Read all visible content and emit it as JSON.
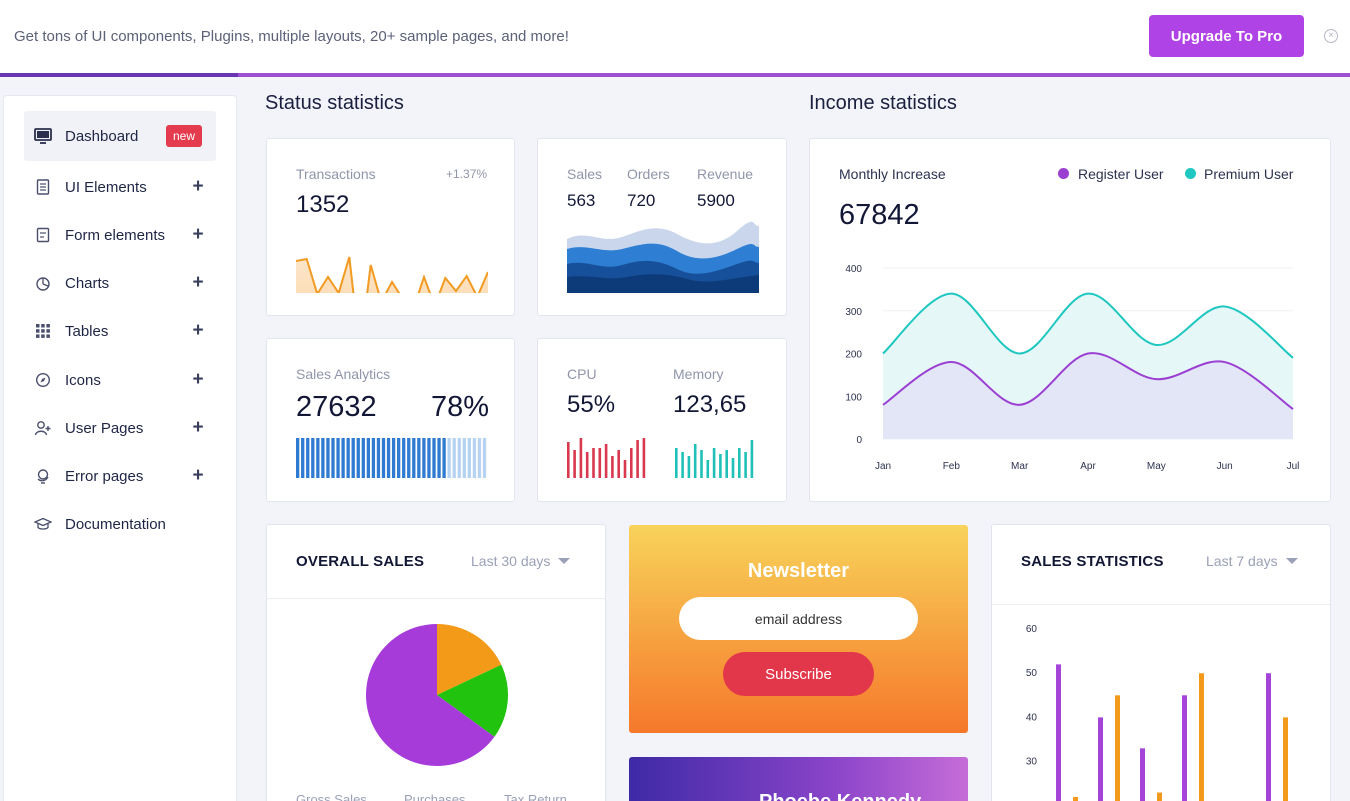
{
  "banner": {
    "text": "Get tons of UI components, Plugins, multiple layouts, 20+ sample pages, and more!",
    "upgrade_label": "Upgrade To Pro",
    "close_icon": "close-icon",
    "progress": 0.176
  },
  "sidebar": {
    "items": [
      {
        "label": "Dashboard",
        "icon": "monitor-icon",
        "badge": "new"
      },
      {
        "label": "UI Elements",
        "icon": "document-icon"
      },
      {
        "label": "Form elements",
        "icon": "form-icon"
      },
      {
        "label": "Charts",
        "icon": "pie-chart-icon"
      },
      {
        "label": "Tables",
        "icon": "grid-icon"
      },
      {
        "label": "Icons",
        "icon": "compass-icon"
      },
      {
        "label": "User Pages",
        "icon": "user-plus-icon"
      },
      {
        "label": "Error pages",
        "icon": "globe-icon"
      },
      {
        "label": "Documentation",
        "icon": "graduation-cap-icon"
      }
    ]
  },
  "status": {
    "title": "Status statistics",
    "transactions": {
      "label": "Transactions",
      "change": "+1.37%",
      "value": "1352",
      "sparkline": [
        260,
        258,
        293,
        276,
        292,
        256,
        350,
        264,
        301,
        281,
        298,
        308,
        276,
        305,
        277,
        290,
        275,
        296,
        271
      ]
    },
    "sales_orders": {
      "sales_label": "Sales",
      "sales_value": "563",
      "orders_label": "Orders",
      "orders_value": "720",
      "revenue_label": "Revenue",
      "revenue_value": "5900"
    },
    "sales_analytics": {
      "label": "Sales Analytics",
      "value": "27632",
      "percent": "78%",
      "fill_fraction": 0.78
    },
    "cpu_memory": {
      "cpu_label": "CPU",
      "cpu_value": "55%",
      "memory_label": "Memory",
      "memory_value": "123,65"
    }
  },
  "income": {
    "title": "Income statistics",
    "label": "Monthly Increase",
    "value": "67842",
    "legend": [
      {
        "name": "Register User",
        "color": "#9b3fd3"
      },
      {
        "name": "Premium User",
        "color": "#1ec7c0"
      }
    ]
  },
  "chart_data": [
    {
      "type": "area",
      "x": [
        "Jan",
        "Feb",
        "Mar",
        "Apr",
        "May",
        "Jun",
        "Jul"
      ],
      "series": [
        {
          "name": "Register User",
          "values": [
            80,
            180,
            80,
            200,
            140,
            180,
            70
          ]
        },
        {
          "name": "Premium User",
          "values": [
            200,
            340,
            200,
            340,
            220,
            310,
            190
          ]
        }
      ],
      "yticks": [
        0,
        100,
        200,
        300,
        400
      ],
      "ylim": [
        0,
        400
      ],
      "grid": true,
      "legend": "top-right"
    },
    {
      "type": "pie",
      "slices": [
        {
          "value": 18,
          "color": "#f39b19"
        },
        {
          "value": 17,
          "color": "#22c30e"
        },
        {
          "value": 65,
          "color": "#a63bd9"
        }
      ],
      "legend_labels": [
        "Gross Sales",
        "Purchases",
        "Tax Return"
      ]
    },
    {
      "type": "bar",
      "series": [
        {
          "values": [
            52,
            40,
            33,
            45,
            50
          ],
          "color": "#a444d8"
        },
        {
          "values": [
            22,
            45,
            23,
            50,
            40
          ],
          "color": "#f39a1c"
        }
      ],
      "yticks": [
        30,
        40,
        50,
        60
      ],
      "ylim": [
        20,
        60
      ]
    }
  ],
  "overall_sales": {
    "title": "OVERALL SALES",
    "period": "Last 30 days"
  },
  "newsletter": {
    "title": "Newsletter",
    "placeholder": "email address",
    "subscribe_label": "Subscribe"
  },
  "profile": {
    "name": "Phoebe Kennedy"
  },
  "sales_statistics": {
    "title": "SALES STATISTICS",
    "period": "Last 7 days"
  }
}
